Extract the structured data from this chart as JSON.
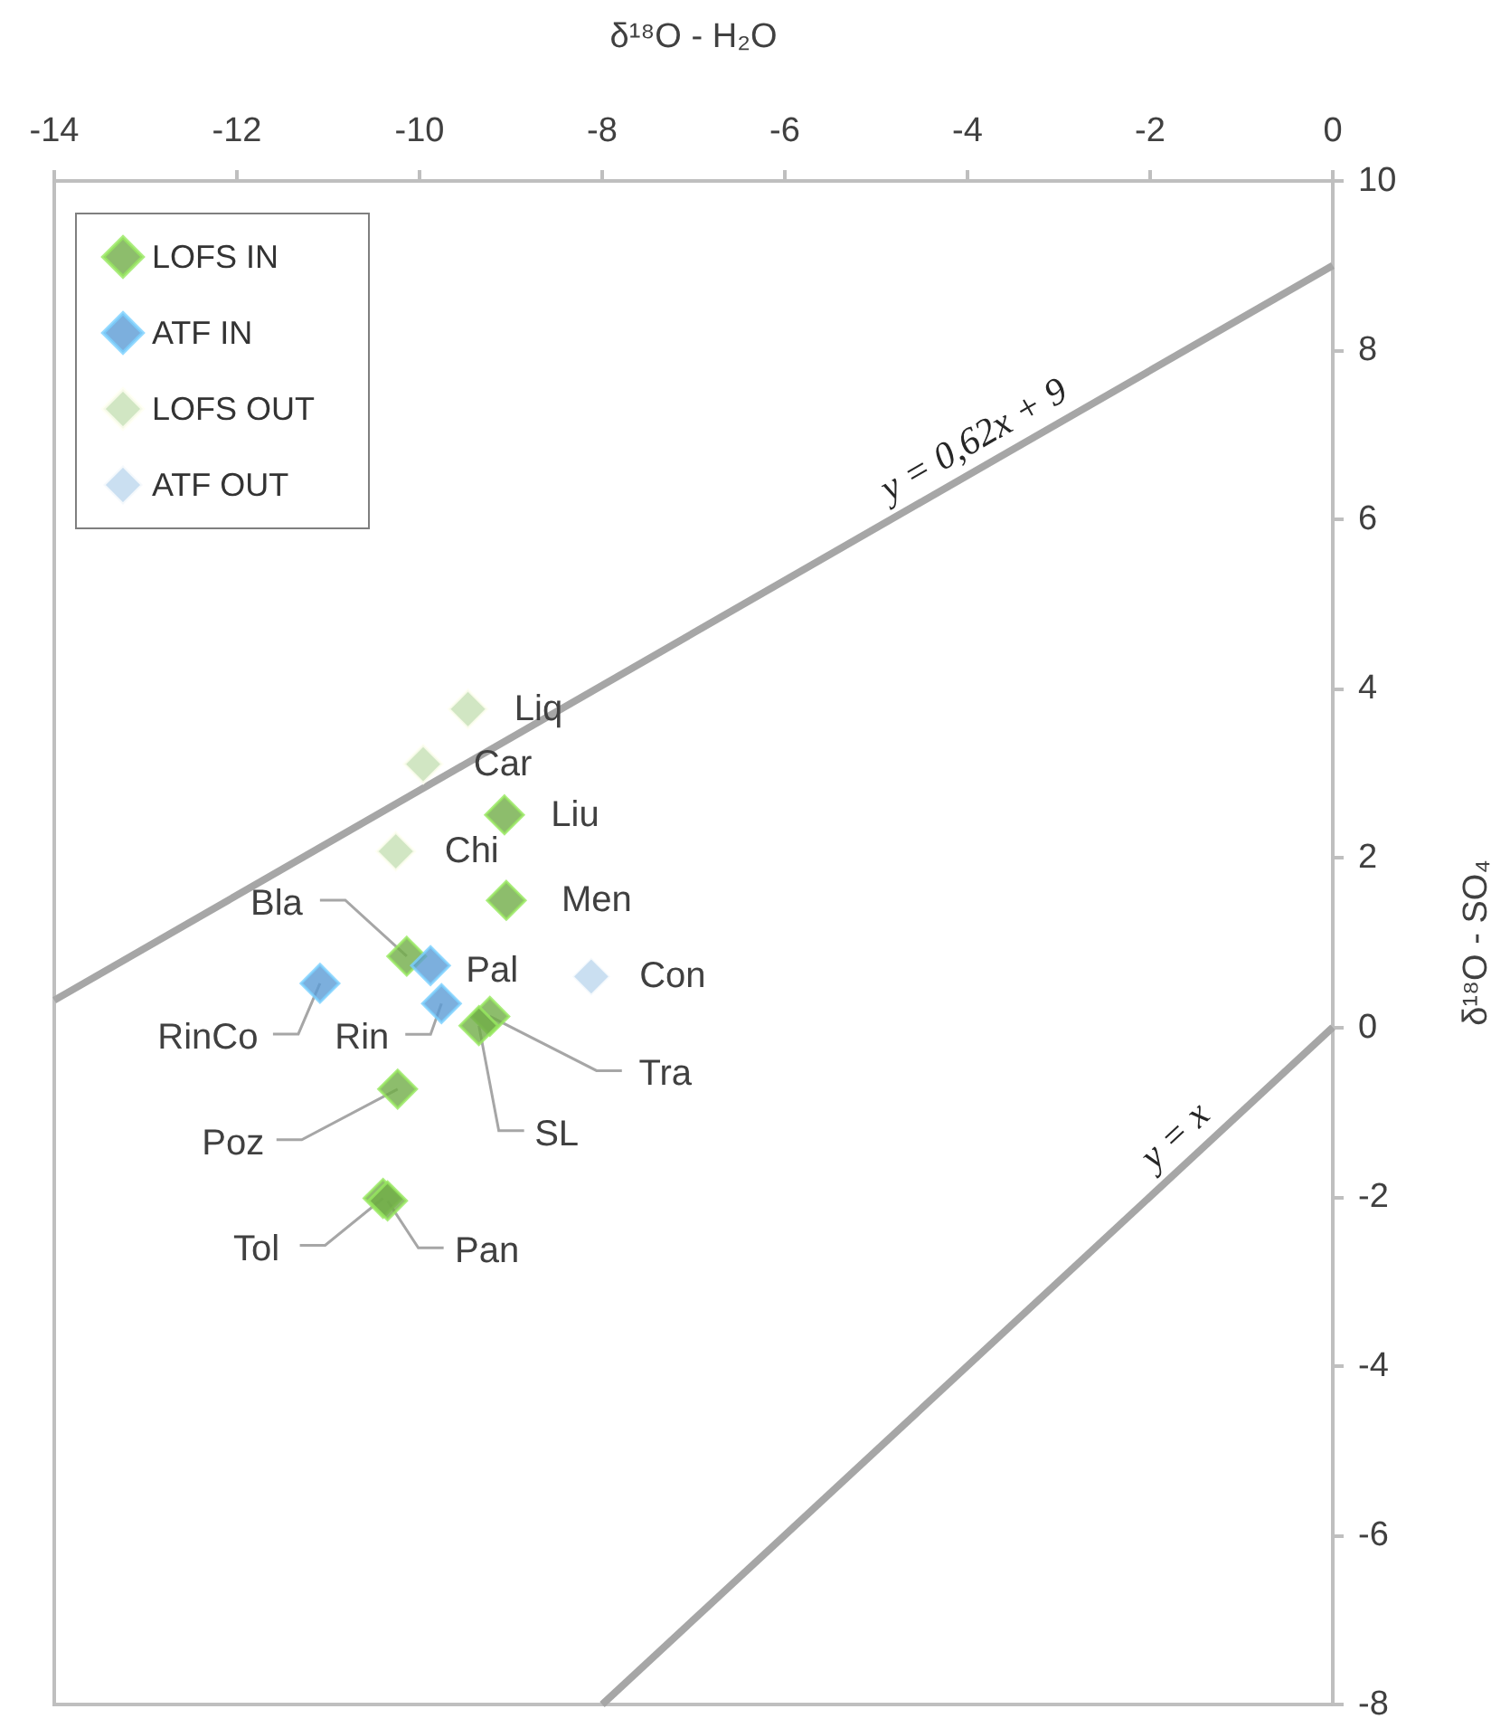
{
  "chart_data": {
    "type": "scatter",
    "xlabel": "δ¹⁸O - H₂O",
    "ylabel": "δ¹⁸O - SO₄",
    "xlim": [
      -14,
      0
    ],
    "xticks": [
      -14,
      -12,
      -10,
      -8,
      -6,
      -4,
      -2,
      0
    ],
    "ylim": [
      -8,
      10
    ],
    "yticks": [
      -8,
      -6,
      -4,
      -2,
      0,
      2,
      4,
      6,
      8,
      10
    ],
    "grid": false,
    "legend": "top left",
    "marker": "diamond",
    "series": [
      {
        "name": "LOFS IN",
        "color": "#70ad47",
        "x": [
          -9.07,
          -9.05,
          -10.14,
          -9.23,
          -9.35,
          -10.24,
          -10.4,
          -10.35
        ],
        "values": [
          2.51,
          1.5,
          0.84,
          0.13,
          0.02,
          -0.73,
          -2.02,
          -2.05
        ]
      },
      {
        "name": "ATF IN",
        "color": "#5b9bd5",
        "x": [
          -9.88,
          -9.76,
          -11.09
        ],
        "values": [
          0.73,
          0.28,
          0.52
        ]
      },
      {
        "name": "LOFS OUT",
        "color": "#c5e0b4",
        "x": [
          -9.47,
          -9.96,
          -10.26
        ],
        "values": [
          3.76,
          3.11,
          2.08
        ]
      },
      {
        "name": "ATF OUT",
        "color": "#bdd7ee",
        "x": [
          -8.12
        ],
        "values": [
          0.6
        ]
      },
      {
        "type": "line",
        "marker": "none",
        "color": "#a6a6a6",
        "x": [
          -14,
          0
        ],
        "values": [
          0.32,
          9
        ]
      },
      {
        "type": "line",
        "marker": "none",
        "color": "#a6a6a6",
        "x": [
          -8,
          0
        ],
        "values": [
          -8,
          0
        ]
      }
    ],
    "annotations": [
      {
        "text": "Liu",
        "x": -9.07,
        "y": 2.51
      },
      {
        "text": "Men",
        "x": -9.05,
        "y": 1.5
      },
      {
        "text": "Bla",
        "x": -10.14,
        "y": 0.84
      },
      {
        "text": "Tra",
        "x": -9.23,
        "y": 0.13
      },
      {
        "text": "SL",
        "x": -9.35,
        "y": 0.02
      },
      {
        "text": "Poz",
        "x": -10.24,
        "y": -0.73
      },
      {
        "text": "Tol",
        "x": -10.4,
        "y": -2.02
      },
      {
        "text": "Pan",
        "x": -10.35,
        "y": -2.05
      },
      {
        "text": "Pal",
        "x": -9.88,
        "y": 0.73
      },
      {
        "text": "Rin",
        "x": -9.76,
        "y": 0.28
      },
      {
        "text": "RinCo",
        "x": -11.09,
        "y": 0.52
      },
      {
        "text": "Liq",
        "x": -9.47,
        "y": 3.76
      },
      {
        "text": "Car",
        "x": -9.96,
        "y": 3.11
      },
      {
        "text": "Chi",
        "x": -10.26,
        "y": 2.08
      },
      {
        "text": "Con",
        "x": -8.12,
        "y": 0.6
      },
      "y = 0,62x + 9",
      "y = x"
    ]
  }
}
